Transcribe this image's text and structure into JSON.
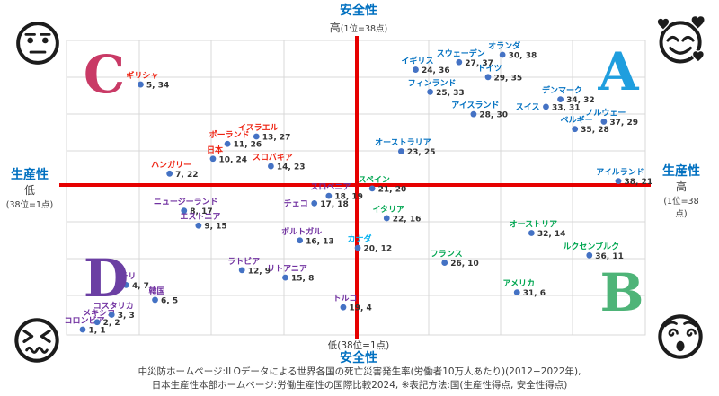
{
  "axes": {
    "top_title": "安全性",
    "top_level": "高",
    "top_note": "(1位=38点)",
    "bottom_level_note": "低(38位=1点)",
    "bottom_title": "安全性",
    "left_title": "生産性",
    "left_level": "低",
    "left_note": "(38位=1点)",
    "right_title": "生産性",
    "right_level": "高",
    "right_note": "(1位=38点)",
    "title_color": "#0070c0"
  },
  "quadrants": [
    {
      "letter": "A",
      "color": "#1f9ede"
    },
    {
      "letter": "B",
      "color": "#4eb478"
    },
    {
      "letter": "C",
      "color": "#c93a66"
    },
    {
      "letter": "D",
      "color": "#6b3fa3"
    }
  ],
  "faces": {
    "top_left": "neutral-face",
    "top_right": "smiling-face-with-hearts",
    "bottom_left": "squinting-face",
    "bottom_right": "dizzy-face"
  },
  "caption": {
    "line1": "中災防ホームページ:ILOデータによる世界各国の死亡災害発生率(労働者10万人あたり)(2012−2022年),",
    "line2": "日本生産性本部ホームページ:労働生産性の国際比較2024, ※表記方法:国(生産性得点, 安全性得点)"
  },
  "chart_data": {
    "type": "scatter",
    "title": "",
    "xlabel": "生産性",
    "ylabel": "安全性",
    "xlim": [
      1,
      38
    ],
    "ylim": [
      1,
      38
    ],
    "grid": true,
    "axis_color": "#e60000",
    "dot_color": "#4472c4",
    "value_color": "#333333",
    "value_format": "x, y",
    "group_colors": {
      "A": "#0070c0",
      "B": "#00a651",
      "C": "#ee2211",
      "D": "#7030a0",
      "highlight": "#00b0f0"
    },
    "points": [
      {
        "country": "コロンビア",
        "x": 1,
        "y": 1,
        "group": "D"
      },
      {
        "country": "メキシコ",
        "x": 2,
        "y": 2,
        "group": "D"
      },
      {
        "country": "コスタリカ",
        "x": 3,
        "y": 3,
        "group": "D"
      },
      {
        "country": "チリ",
        "x": 4,
        "y": 7,
        "group": "D"
      },
      {
        "country": "ギリシャ",
        "x": 5,
        "y": 34,
        "group": "C"
      },
      {
        "country": "韓国",
        "x": 6,
        "y": 5,
        "group": "D"
      },
      {
        "country": "ハンガリー",
        "x": 7,
        "y": 22,
        "group": "C"
      },
      {
        "country": "ニュージーランド",
        "x": 8,
        "y": 17,
        "group": "D"
      },
      {
        "country": "エストニア",
        "x": 9,
        "y": 15,
        "group": "D"
      },
      {
        "country": "日本",
        "x": 10,
        "y": 24,
        "group": "C"
      },
      {
        "country": "ポーランド",
        "x": 11,
        "y": 26,
        "group": "C"
      },
      {
        "country": "ラトビア",
        "x": 12,
        "y": 9,
        "group": "D"
      },
      {
        "country": "イスラエル",
        "x": 13,
        "y": 27,
        "group": "C"
      },
      {
        "country": "スロバキア",
        "x": 14,
        "y": 23,
        "group": "C"
      },
      {
        "country": "リトアニア",
        "x": 15,
        "y": 8,
        "group": "D"
      },
      {
        "country": "ポルトガル",
        "x": 16,
        "y": 13,
        "group": "D"
      },
      {
        "country": "チェコ",
        "x": 17,
        "y": 18,
        "group": "D",
        "label_pos": "left"
      },
      {
        "country": "スロベニア",
        "x": 18,
        "y": 19,
        "group": "D"
      },
      {
        "country": "トルコ",
        "x": 19,
        "y": 4,
        "group": "D"
      },
      {
        "country": "カナダ",
        "x": 20,
        "y": 12,
        "group": "highlight"
      },
      {
        "country": "スペイン",
        "x": 21,
        "y": 20,
        "group": "B"
      },
      {
        "country": "イタリア",
        "x": 22,
        "y": 16,
        "group": "B"
      },
      {
        "country": "オーストラリア",
        "x": 23,
        "y": 25,
        "group": "A"
      },
      {
        "country": "イギリス",
        "x": 24,
        "y": 36,
        "group": "A"
      },
      {
        "country": "フィンランド",
        "x": 25,
        "y": 33,
        "group": "A"
      },
      {
        "country": "フランス",
        "x": 26,
        "y": 10,
        "group": "B"
      },
      {
        "country": "スウェーデン",
        "x": 27,
        "y": 37,
        "group": "A"
      },
      {
        "country": "アイスランド",
        "x": 28,
        "y": 30,
        "group": "A"
      },
      {
        "country": "ドイツ",
        "x": 29,
        "y": 35,
        "group": "A"
      },
      {
        "country": "オランダ",
        "x": 30,
        "y": 38,
        "group": "A"
      },
      {
        "country": "アメリカ",
        "x": 31,
        "y": 6,
        "group": "B"
      },
      {
        "country": "オーストリア",
        "x": 32,
        "y": 14,
        "group": "B"
      },
      {
        "country": "スイス",
        "x": 33,
        "y": 31,
        "group": "A",
        "label_pos": "left"
      },
      {
        "country": "デンマーク",
        "x": 34,
        "y": 32,
        "group": "A"
      },
      {
        "country": "ベルギー",
        "x": 35,
        "y": 28,
        "group": "A"
      },
      {
        "country": "ルクセンブルク",
        "x": 36,
        "y": 11,
        "group": "B"
      },
      {
        "country": "ノルウェー",
        "x": 37,
        "y": 29,
        "group": "A"
      },
      {
        "country": "アイルランド",
        "x": 38,
        "y": 21,
        "group": "A"
      }
    ]
  }
}
